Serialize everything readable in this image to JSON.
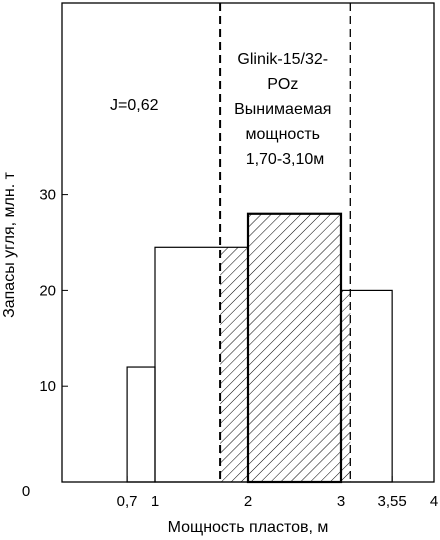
{
  "chart_data": {
    "type": "bar",
    "title": "",
    "xlabel": "Мощность пластов, м",
    "ylabel": "Запасы угля, млн. т",
    "xlim": [
      0,
      4
    ],
    "ylim": [
      0,
      50
    ],
    "x_ticks": [
      {
        "value": 0.7,
        "label": "0,7"
      },
      {
        "value": 1,
        "label": "1"
      },
      {
        "value": 2,
        "label": "2"
      },
      {
        "value": 3,
        "label": "3"
      },
      {
        "value": 3.55,
        "label": "3,55"
      },
      {
        "value": 4,
        "label": "4"
      }
    ],
    "y_ticks": [
      {
        "value": 0,
        "label": "0"
      },
      {
        "value": 10,
        "label": "10"
      },
      {
        "value": 20,
        "label": "20"
      },
      {
        "value": 30,
        "label": "30"
      }
    ],
    "bins": [
      {
        "from": 0.7,
        "to": 1.0,
        "value": 12
      },
      {
        "from": 1.0,
        "to": 2.0,
        "value": 24.5
      },
      {
        "from": 2.0,
        "to": 3.0,
        "value": 28
      },
      {
        "from": 3.0,
        "to": 3.55,
        "value": 20
      }
    ],
    "hatched_range": [
      1.7,
      3.1
    ],
    "dashed_lines_x": [
      1.7,
      3.1
    ],
    "annotations": {
      "index_text": "J=0,62",
      "seam_text": [
        "Glinik-15/32-",
        "POz",
        "Вынимаемая",
        "мощность",
        "1,70-3,10м"
      ]
    },
    "grid": false
  }
}
